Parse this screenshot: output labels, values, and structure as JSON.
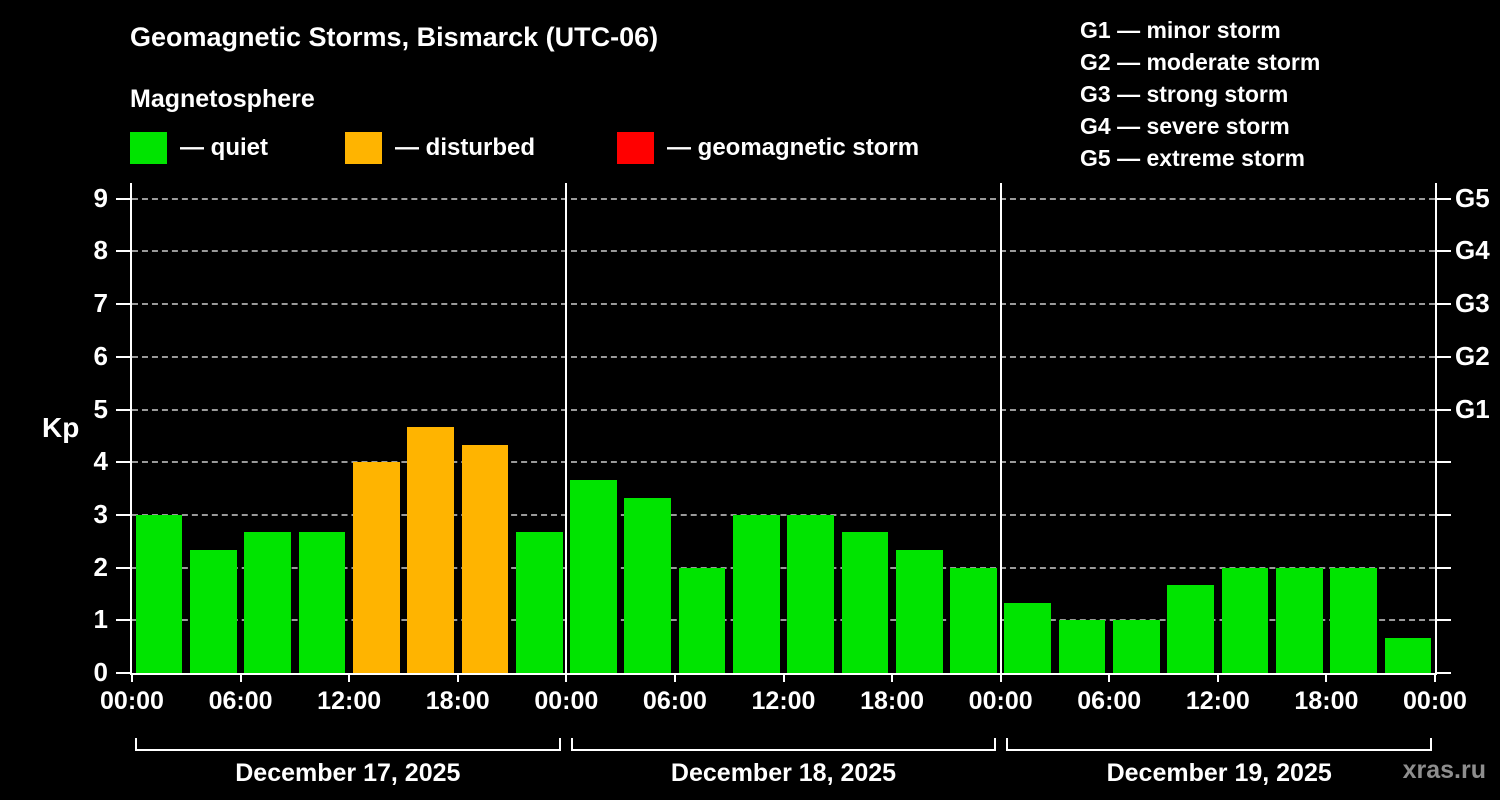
{
  "title": "Geomagnetic Storms, Bismarck (UTC-06)",
  "subtitle": "Magnetosphere",
  "legend": [
    {
      "label": "— quiet",
      "color": "#00e400"
    },
    {
      "label": "— disturbed",
      "color": "#ffb400"
    },
    {
      "label": "— geomagnetic storm",
      "color": "#ff0000"
    }
  ],
  "g_legend": [
    "G1 — minor storm",
    "G2 — moderate storm",
    "G3 — strong storm",
    "G4 — severe storm",
    "G5 — extreme storm"
  ],
  "watermark": "xras.ru",
  "chart_data": {
    "type": "bar",
    "title": "Geomagnetic Storms, Bismarck (UTC-06)",
    "ylabel": "Kp",
    "ylim": [
      0,
      9.3
    ],
    "yticks": [
      0,
      1,
      2,
      3,
      4,
      5,
      6,
      7,
      8,
      9
    ],
    "grid": "dashed horizontal lines at integer Kp values",
    "legend_position": "top-left",
    "right_axis_labels": [
      {
        "label": "G1",
        "value": 5
      },
      {
        "label": "G2",
        "value": 6
      },
      {
        "label": "G3",
        "value": 7
      },
      {
        "label": "G4",
        "value": 8
      },
      {
        "label": "G5",
        "value": 9
      }
    ],
    "bar_interval_hours": 3,
    "x_tick_labels": [
      "00:00",
      "06:00",
      "12:00",
      "18:00",
      "00:00",
      "06:00",
      "12:00",
      "18:00",
      "00:00",
      "06:00",
      "12:00",
      "18:00",
      "00:00"
    ],
    "days": [
      {
        "date": "December 17, 2025",
        "values": [
          3.0,
          2.33,
          2.67,
          2.67,
          4.0,
          4.67,
          4.33,
          2.67
        ]
      },
      {
        "date": "December 18, 2025",
        "values": [
          3.67,
          3.33,
          2.0,
          3.0,
          3.0,
          2.67,
          2.33,
          2.0
        ]
      },
      {
        "date": "December 19, 2025",
        "values": [
          1.33,
          1.0,
          1.0,
          1.67,
          2.0,
          2.0,
          2.0,
          0.67
        ]
      }
    ],
    "color_rules": {
      "quiet_below": 4,
      "disturbed_from": 4,
      "storm_from": 5
    },
    "colors": {
      "quiet": "#00e400",
      "disturbed": "#ffb400",
      "storm": "#ff0000"
    }
  }
}
